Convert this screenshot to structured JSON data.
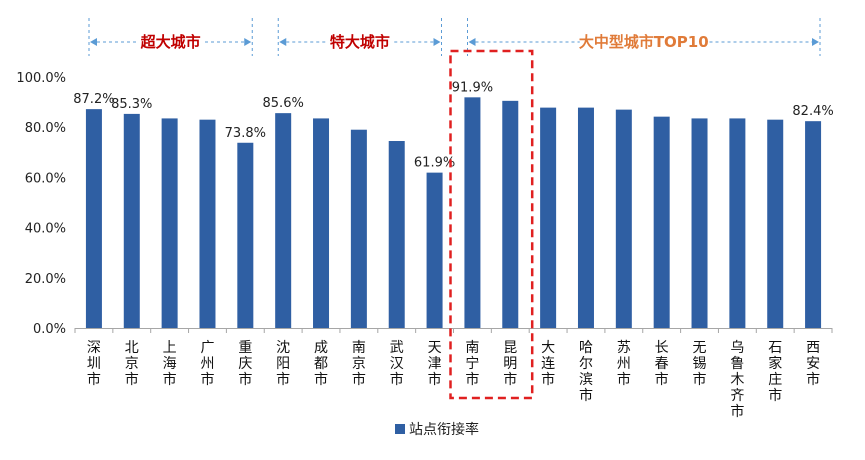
{
  "chart_data": {
    "type": "bar",
    "categories": [
      "深圳市",
      "北京市",
      "上海市",
      "广州市",
      "重庆市",
      "沈阳市",
      "成都市",
      "南京市",
      "武汉市",
      "天津市",
      "南宁市",
      "昆明市",
      "大连市",
      "哈尔滨市",
      "苏州市",
      "长春市",
      "无锡市",
      "乌鲁木齐市",
      "石家庄市",
      "西安市"
    ],
    "series": [
      {
        "name": "站点衔接率",
        "values": [
          87.2,
          85.3,
          83.5,
          83.0,
          73.8,
          85.6,
          83.5,
          79.0,
          74.5,
          61.9,
          91.9,
          90.5,
          87.8,
          87.8,
          87.0,
          84.2,
          83.5,
          83.5,
          83.0,
          82.4
        ]
      }
    ],
    "data_labels": [
      {
        "index": 0,
        "text": "87.2%"
      },
      {
        "index": 1,
        "text": "85.3%"
      },
      {
        "index": 4,
        "text": "73.8%"
      },
      {
        "index": 5,
        "text": "85.6%"
      },
      {
        "index": 9,
        "text": "61.9%"
      },
      {
        "index": 10,
        "text": "91.9%"
      },
      {
        "index": 19,
        "text": "82.4%"
      }
    ],
    "y_ticks": [
      "0.0%",
      "20.0%",
      "40.0%",
      "60.0%",
      "80.0%",
      "100.0%"
    ],
    "ylim": [
      0,
      100
    ],
    "groups": [
      {
        "label": "超大城市",
        "from": 0,
        "to": 4,
        "color": "#c00000"
      },
      {
        "label": "特大城市",
        "from": 5,
        "to": 9,
        "color": "#c00000"
      },
      {
        "label": "大中型城市TOP10",
        "from": 10,
        "to": 19,
        "color": "#e07b39"
      }
    ],
    "highlight": {
      "from": 10,
      "to": 11,
      "color": "#e02020"
    },
    "bar_color": "#2f5fa3",
    "grid": false,
    "legend_position": "bottom-center"
  }
}
